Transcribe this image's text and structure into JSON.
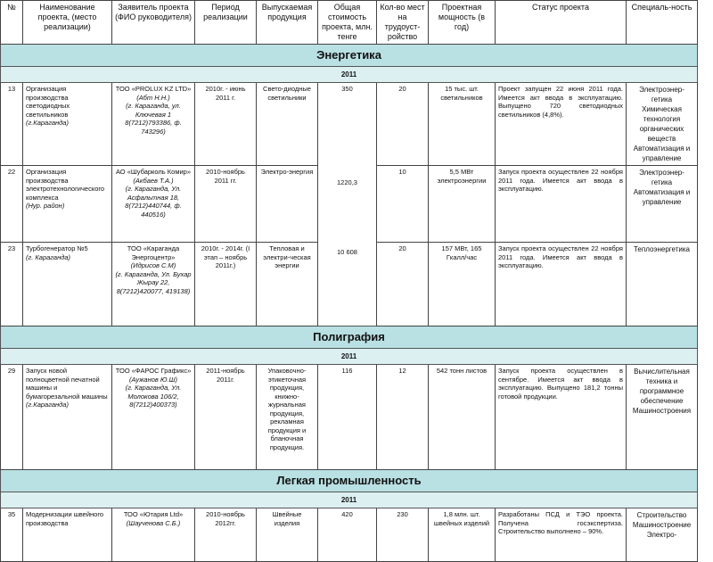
{
  "headers": [
    "№",
    "Наименование проекта, (место реализации)",
    "Заявитель проекта (ФИО руководителя)",
    "Период реализации",
    "Выпускаемая продукция",
    "Общая стоимость проекта, млн. тенге",
    "Кол-во мест на трудоуст-ройство",
    "Проектная мощность (в год)",
    "Статус проекта",
    "Специаль-ность"
  ],
  "sections": [
    {
      "title": "Энергетика",
      "year": "2011",
      "rows": [
        {
          "no": "13",
          "name": "Организация производства светодиодных светильников",
          "place": "(г.Караганда)",
          "company": "ТОО «PROLUX KZ LTD»",
          "head": "(Абт Н.Н.)",
          "contact": "(г. Караганда, ул. Ключевая 1 8(7212)793386, ф. 743296)",
          "period": "2010г. - июнь 2011 г.",
          "product": "Свето-диодные светильники",
          "cost": "350",
          "jobs": "20",
          "capacity": "15 тыс. шт. светильников",
          "status": "Проект запущен 22 июня 2011 года. Имеется акт ввода в эксплуатацию. Выпущено 720 светодиодных светильников (4,8%).",
          "spec": [
            "Электроэнер-гетика",
            "Химическая технология органических веществ",
            "Автоматизация и управление"
          ]
        },
        {
          "no": "22",
          "name": "Организация производства электротехнологического комплекса",
          "place": "(Нур. район)",
          "company": "АО «Шубарколь Комир»",
          "head": "(Акбаев Т.А.)",
          "contact": "(г. Караганда, Ул. Асфальтная 18, 8(7212)440744, ф. 440516)",
          "period": "2010-ноябрь 2011 гг.",
          "product": "Электро-энергия",
          "cost": "1220,3",
          "jobs": "10",
          "capacity": "5,5 МВт электроэнергии",
          "status": "Запуск проекта осуществлен 22 ноября 2011 года. Имеется акт ввода в эксплуатацию.",
          "spec": [
            "Электроэнер-гетика",
            "Автоматизация и управление"
          ]
        },
        {
          "no": "23",
          "name": "Турбогенератор №5",
          "place": "(г. Караганда)",
          "company": "ТОО «Караганда Энергоцентр»",
          "head": "(Идрисов С.М)",
          "contact": "(г. Караганда, Ул. Бухар Жырау 22, 8(7212)420077, 419138)",
          "period": "2010г. - 2014г. (I этап – ноябрь 2011г.)",
          "product": "Тепловая и электри-ческая энергии",
          "cost": "10 608",
          "jobs": "20",
          "capacity": "157 МВт, 165 Гкалл/час",
          "status": "Запуск проекта осуществлен 22 ноября 2011 года. Имеется акт ввода в эксплуатацию.",
          "spec": [
            "Теплоэнергетика"
          ]
        }
      ]
    },
    {
      "title": "Полиграфия",
      "year": "2011",
      "rows": [
        {
          "no": "29",
          "name": "Запуск новой полноцветной печатной машины и бумагорезальной машины",
          "place": "(г.Караганда)",
          "company": "ТОО «ФАРОС Графикс»",
          "head": "(Аужанов Ю.Ш)",
          "contact": "(г. Караганда, Ул. Молокова 106/2, 8(7212)400373)",
          "period": "2011-ноябрь 2011г.",
          "product": "Упаковочно-этикеточная продукция, книжно-журнальная продукция, рекламная продукция и бланочная продукция.",
          "cost": "116",
          "jobs": "12",
          "capacity": "542 тонн листов",
          "status": "Запуск проекта осуществлен в сентябре. Имеется акт ввода в эксплуатацию. Выпущено 181,2 тонны готовой продукции.",
          "spec": [
            "Вычислительная техника и программное обеспечение",
            "Машиностроения"
          ]
        }
      ]
    },
    {
      "title": "Легкая промышленность",
      "year": "2011",
      "rows": [
        {
          "no": "35",
          "name": "Модернизации швейного производства",
          "place": "",
          "company": "ТОО «Ютария Ltd»",
          "head": "(Шаученова С.Б.)",
          "contact": "",
          "period": "2010-ноябрь 2012гг.",
          "product": "Швейные изделия",
          "cost": "420",
          "jobs": "230",
          "capacity": "1,8 млн. шт. швейных изделий",
          "status": "Разработаны ПСД и ТЭО проекта. Получена госэкспертиза. Строительство выполнено – 90%.",
          "spec": [
            "Строительство",
            "Машиностроение",
            "Электро-"
          ]
        }
      ]
    }
  ]
}
